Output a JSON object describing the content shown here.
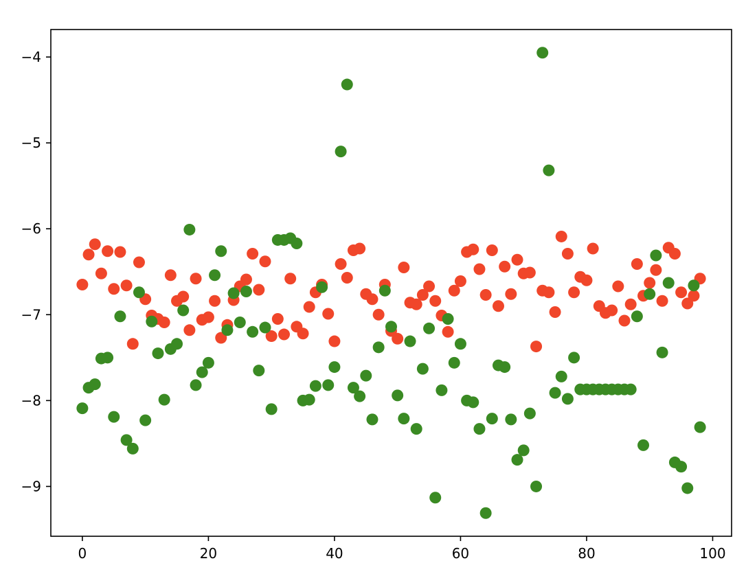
{
  "chart_data": {
    "type": "scatter",
    "xlim": [
      -5,
      103
    ],
    "ylim": [
      -9.58,
      -3.68
    ],
    "xticks": [
      0,
      20,
      40,
      60,
      80,
      100
    ],
    "yticks": [
      -4,
      -5,
      -6,
      -7,
      -8,
      -9
    ],
    "xtick_labels": [
      "0",
      "20",
      "40",
      "60",
      "80",
      "100"
    ],
    "ytick_labels": [
      "−4",
      "−5",
      "−6",
      "−7",
      "−8",
      "−9"
    ],
    "grid": false,
    "series": [
      {
        "color": "#f0462a",
        "x": [
          0,
          1,
          2,
          3,
          4,
          5,
          6,
          7,
          8,
          9,
          10,
          11,
          12,
          13,
          14,
          15,
          16,
          17,
          18,
          19,
          20,
          21,
          22,
          23,
          24,
          25,
          26,
          27,
          28,
          29,
          30,
          31,
          32,
          33,
          34,
          35,
          36,
          37,
          38,
          39,
          40,
          41,
          42,
          43,
          44,
          45,
          46,
          47,
          48,
          49,
          50,
          51,
          52,
          53,
          54,
          55,
          56,
          57,
          58,
          59,
          60,
          61,
          62,
          63,
          64,
          65,
          66,
          67,
          68,
          69,
          70,
          71,
          72,
          73,
          74,
          75,
          76,
          77,
          78,
          79,
          80,
          81,
          82,
          83,
          84,
          85,
          86,
          87,
          88,
          89,
          90,
          91,
          92,
          93,
          94,
          95,
          96,
          97,
          98
        ],
        "y": [
          -6.65,
          -6.3,
          -6.18,
          -6.52,
          -6.26,
          -6.7,
          -6.27,
          -6.66,
          -7.34,
          -6.39,
          -6.82,
          -7.01,
          -7.05,
          -7.09,
          -6.54,
          -6.84,
          -6.79,
          -7.18,
          -6.58,
          -7.06,
          -7.03,
          -6.84,
          -7.27,
          -7.12,
          -6.83,
          -6.67,
          -6.59,
          -6.29,
          -6.71,
          -6.38,
          -7.25,
          -7.05,
          -7.23,
          -6.58,
          -7.14,
          -7.22,
          -6.91,
          -6.74,
          -6.65,
          -6.99,
          -7.31,
          -6.41,
          -6.57,
          -6.25,
          -6.23,
          -6.76,
          -6.82,
          -7.0,
          -6.65,
          -7.19,
          -7.28,
          -6.45,
          -6.86,
          -6.88,
          -6.77,
          -6.67,
          -6.84,
          -7.01,
          -7.2,
          -6.72,
          -6.61,
          -6.27,
          -6.24,
          -6.47,
          -6.77,
          -6.25,
          -6.9,
          -6.44,
          -6.76,
          -6.36,
          -6.52,
          -6.51,
          -7.37,
          -6.72,
          -6.74,
          -6.97,
          -6.09,
          -6.29,
          -6.74,
          -6.56,
          -6.6,
          -6.23,
          -6.9,
          -6.98,
          -6.95,
          -6.67,
          -7.07,
          -6.88,
          -6.41,
          -6.78,
          -6.63,
          -6.48,
          -6.84,
          -6.22,
          -6.29,
          -6.74,
          -6.87,
          -6.78,
          -6.58
        ]
      },
      {
        "color": "#3a8a23",
        "x": [
          0,
          1,
          2,
          3,
          4,
          5,
          6,
          7,
          8,
          9,
          10,
          11,
          12,
          13,
          14,
          15,
          16,
          17,
          18,
          19,
          20,
          21,
          22,
          23,
          24,
          25,
          26,
          27,
          28,
          29,
          30,
          31,
          32,
          33,
          34,
          35,
          36,
          37,
          38,
          39,
          40,
          41,
          42,
          43,
          44,
          45,
          46,
          47,
          48,
          49,
          50,
          51,
          52,
          53,
          54,
          55,
          56,
          57,
          58,
          59,
          60,
          61,
          62,
          63,
          64,
          65,
          66,
          67,
          68,
          69,
          70,
          71,
          72,
          73,
          74,
          75,
          76,
          77,
          78,
          79,
          80,
          81,
          82,
          83,
          84,
          85,
          86,
          87,
          88,
          89,
          90,
          91,
          92,
          93,
          94,
          95,
          96,
          97,
          98
        ],
        "y": [
          -8.09,
          -7.85,
          -7.81,
          -7.51,
          -7.5,
          -8.19,
          -7.02,
          -8.46,
          -8.56,
          -6.74,
          -8.23,
          -7.08,
          -7.45,
          -7.99,
          -7.4,
          -7.34,
          -6.95,
          -6.01,
          -7.82,
          -7.67,
          -7.56,
          -6.54,
          -6.26,
          -7.18,
          -6.75,
          -7.09,
          -6.73,
          -7.2,
          -7.65,
          -7.15,
          -8.1,
          -6.13,
          -6.13,
          -6.11,
          -6.17,
          -8.0,
          -7.99,
          -7.83,
          -6.68,
          -7.82,
          -7.61,
          -5.1,
          -4.32,
          -7.85,
          -7.95,
          -7.71,
          -8.22,
          -7.38,
          -6.72,
          -7.14,
          -7.94,
          -8.21,
          -7.31,
          -8.33,
          -7.63,
          -7.16,
          -9.13,
          -7.88,
          -7.05,
          -7.56,
          -7.34,
          -8.0,
          -8.02,
          -8.33,
          -9.31,
          -8.21,
          -7.59,
          -7.61,
          -8.22,
          -8.69,
          -8.58,
          -8.15,
          -9.0,
          -3.95,
          -5.32,
          -7.91,
          -7.72,
          -7.98,
          -7.5,
          -7.87,
          -7.87,
          -7.87,
          -7.87,
          -7.87,
          -7.87,
          -7.87,
          -7.87,
          -7.87,
          -7.02,
          -8.52,
          -6.76,
          -6.31,
          -7.44,
          -6.63,
          -8.72,
          -8.77,
          -9.02,
          -6.66,
          -8.31
        ]
      }
    ]
  }
}
